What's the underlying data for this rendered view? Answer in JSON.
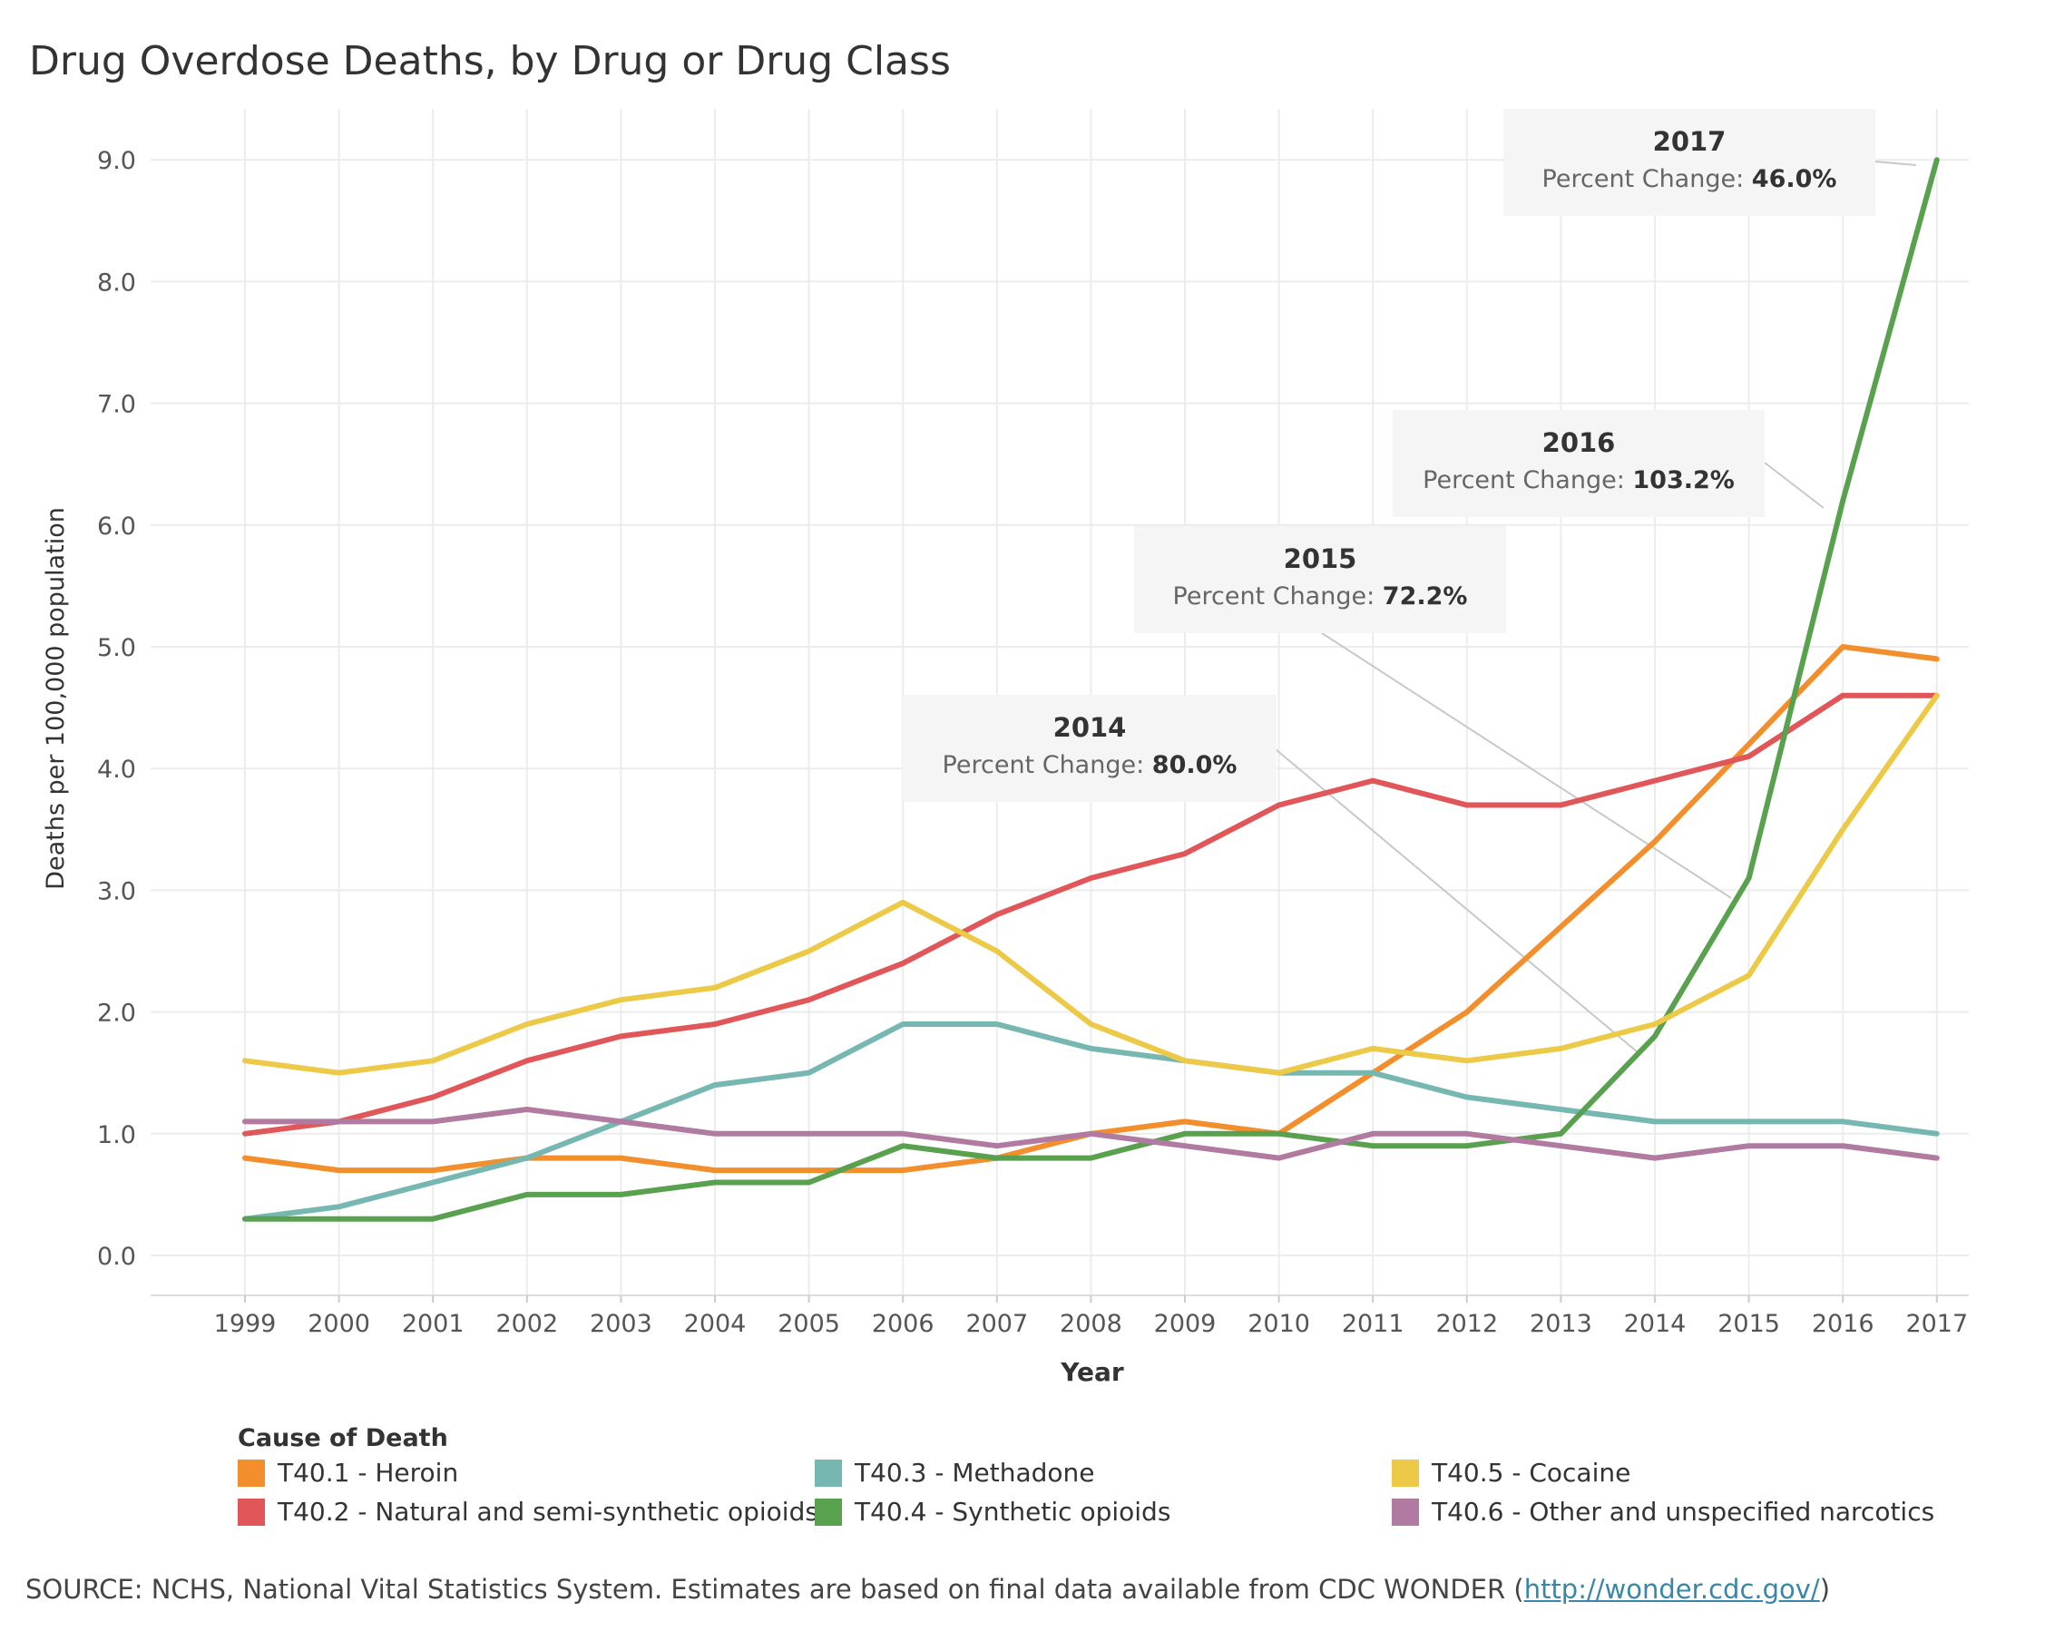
{
  "chart_data": {
    "type": "line",
    "title": "Drug Overdose Deaths, by Drug or Drug Class",
    "xlabel": "Year",
    "ylabel": "Deaths per 100,000 population",
    "x": [
      "1999",
      "2000",
      "2001",
      "2002",
      "2003",
      "2004",
      "2005",
      "2006",
      "2007",
      "2008",
      "2009",
      "2010",
      "2011",
      "2012",
      "2013",
      "2014",
      "2015",
      "2016",
      "2017"
    ],
    "yticks": [
      "0.0",
      "1.0",
      "2.0",
      "3.0",
      "4.0",
      "5.0",
      "6.0",
      "7.0",
      "8.0",
      "9.0"
    ],
    "ylim": [
      0,
      9.8
    ],
    "grid": true,
    "legend_title": "Cause of Death",
    "legend_position": "bottom",
    "series": [
      {
        "name": "T40.1 - Heroin",
        "color": "#f28e2b",
        "values": [
          0.8,
          0.7,
          0.7,
          0.8,
          0.8,
          0.7,
          0.7,
          0.7,
          0.8,
          1.0,
          1.1,
          1.0,
          1.5,
          2.0,
          2.7,
          3.4,
          4.2,
          5.0,
          4.9
        ]
      },
      {
        "name": "T40.2 - Natural and semi-synthetic opioids",
        "color": "#e15759",
        "values": [
          1.0,
          1.1,
          1.3,
          1.6,
          1.8,
          1.9,
          2.1,
          2.4,
          2.8,
          3.1,
          3.3,
          3.7,
          3.9,
          3.7,
          3.7,
          3.9,
          4.1,
          4.6,
          4.6
        ]
      },
      {
        "name": "T40.3 - Methadone",
        "color": "#76b7b2",
        "values": [
          0.3,
          0.4,
          0.6,
          0.8,
          1.1,
          1.4,
          1.5,
          1.9,
          1.9,
          1.7,
          1.6,
          1.5,
          1.5,
          1.3,
          1.2,
          1.1,
          1.1,
          1.1,
          1.0
        ]
      },
      {
        "name": "T40.4 - Synthetic opioids",
        "color": "#59a14f",
        "values": [
          0.3,
          0.3,
          0.3,
          0.5,
          0.5,
          0.6,
          0.6,
          0.9,
          0.8,
          0.8,
          1.0,
          1.0,
          0.9,
          0.9,
          1.0,
          1.8,
          3.1,
          6.2,
          9.0
        ]
      },
      {
        "name": "T40.5 - Cocaine",
        "color": "#edc948",
        "values": [
          1.6,
          1.5,
          1.6,
          1.9,
          2.1,
          2.2,
          2.5,
          2.9,
          2.5,
          1.9,
          1.6,
          1.5,
          1.7,
          1.6,
          1.7,
          1.9,
          2.3,
          3.5,
          4.6
        ]
      },
      {
        "name": "T40.6 - Other and unspecified narcotics",
        "color": "#b07aa1",
        "values": [
          1.1,
          1.1,
          1.1,
          1.2,
          1.1,
          1.0,
          1.0,
          1.0,
          0.9,
          1.0,
          0.9,
          0.8,
          1.0,
          1.0,
          0.9,
          0.8,
          0.9,
          0.9,
          0.8
        ]
      }
    ],
    "annotations": [
      {
        "year": "2014",
        "label": "Percent Change:",
        "value": "80.0%"
      },
      {
        "year": "2015",
        "label": "Percent Change:",
        "value": "72.2%"
      },
      {
        "year": "2016",
        "label": "Percent Change:",
        "value": "103.2%"
      },
      {
        "year": "2017",
        "label": "Percent Change:",
        "value": "46.0%"
      }
    ]
  },
  "source": {
    "text": "SOURCE:  NCHS, National Vital Statistics System. Estimates are based on final data available from  CDC WONDER  (",
    "link": "http://wonder.cdc.gov/",
    "close": ")"
  }
}
